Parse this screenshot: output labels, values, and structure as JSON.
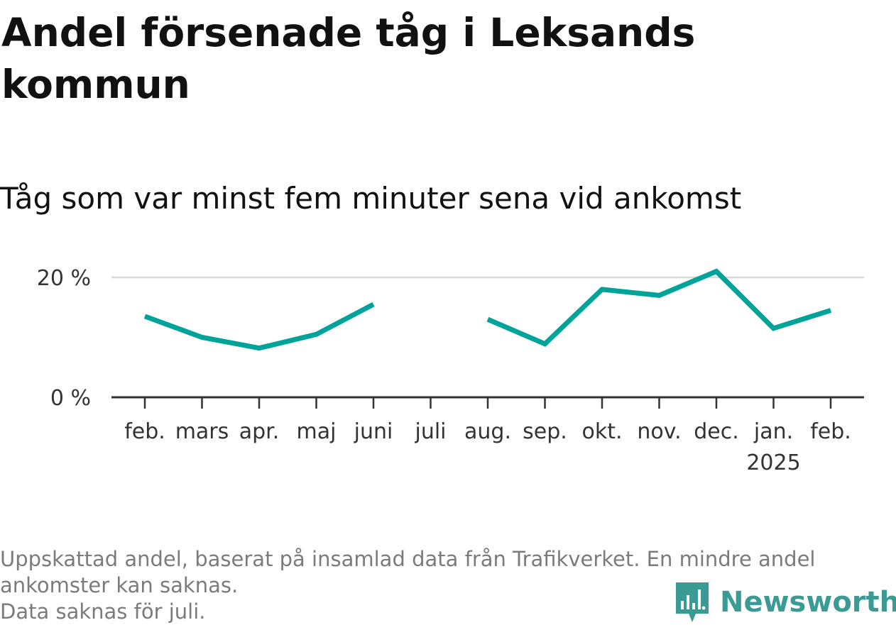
{
  "header": {
    "title": "Andel försenade tåg i Leksands kommun",
    "subtitle": "Tåg som var minst fem minuter sena vid ankomst"
  },
  "footnote": {
    "line1": "Uppskattad andel, baserat på insamlad data från Trafikverket. En mindre andel",
    "line2": "ankomster kan saknas.",
    "line3": "Data saknas för juli."
  },
  "brand": {
    "name": "Newsworthy",
    "icon": "newsworthy-logo-icon",
    "color": "#3a9b95"
  },
  "chart_data": {
    "type": "line",
    "title": "Andel försenade tåg i Leksands kommun",
    "subtitle": "Tåg som var minst fem minuter sena vid ankomst",
    "categories": [
      "feb.",
      "mars",
      "apr.",
      "maj",
      "juni",
      "juli",
      "aug.",
      "sep.",
      "okt.",
      "nov.",
      "dec.",
      "jan.",
      "feb."
    ],
    "year_label": {
      "category_index": 11,
      "text": "2025"
    },
    "series": [
      {
        "color": "#00a39a",
        "values": [
          13.5,
          10.0,
          8.2,
          10.5,
          15.5,
          null,
          13.0,
          8.9,
          18.0,
          17.0,
          21.0,
          11.5,
          14.5
        ]
      }
    ],
    "y_ticks": [
      {
        "value": 0,
        "label": "0 %"
      },
      {
        "value": 20,
        "label": "20 %"
      }
    ],
    "ylim": [
      0,
      20
    ],
    "grid": true,
    "xlabel": "",
    "ylabel": ""
  }
}
